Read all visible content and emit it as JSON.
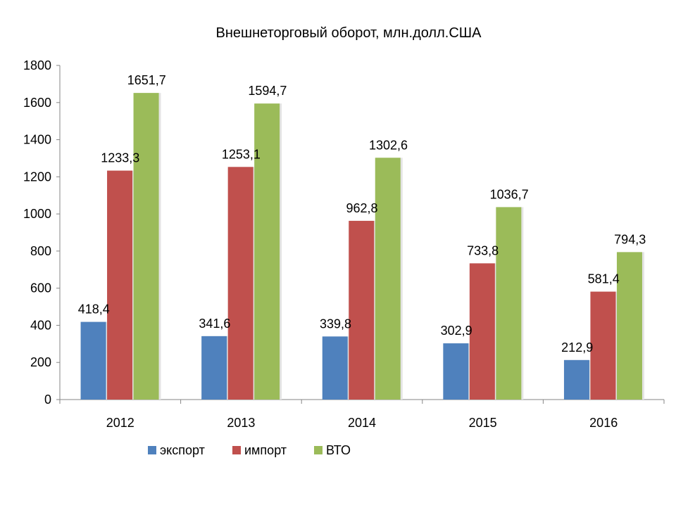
{
  "chart_data": {
    "type": "bar",
    "title": "Внешнеторговый оборот, млн.долл.США",
    "xlabel": "",
    "ylabel": "",
    "ylim": [
      0,
      1800
    ],
    "yticks": [
      0,
      200,
      400,
      600,
      800,
      1000,
      1200,
      1400,
      1600,
      1800
    ],
    "grid": false,
    "legend_position": "bottom",
    "categories": [
      "2012",
      "2013",
      "2014",
      "2015",
      "2016"
    ],
    "series": [
      {
        "name": "экспорт",
        "color": "#4F81BD",
        "values": [
          418.4,
          341.6,
          339.8,
          302.9,
          212.9
        ],
        "labels": [
          "418,4",
          "341,6",
          "339,8",
          "302,9",
          "212,9"
        ]
      },
      {
        "name": "импорт",
        "color": "#C0504D",
        "values": [
          1233.3,
          1253.1,
          962.8,
          733.8,
          581.4
        ],
        "labels": [
          "1233,3",
          "1253,1",
          "962,8",
          "733,8",
          "581,4"
        ]
      },
      {
        "name": "ВТО",
        "color": "#9BBB59",
        "values": [
          1651.7,
          1594.7,
          1302.6,
          1036.7,
          794.3
        ],
        "labels": [
          "1651,7",
          "1594,7",
          "1302,6",
          "1036,7",
          "794,3"
        ]
      }
    ]
  }
}
